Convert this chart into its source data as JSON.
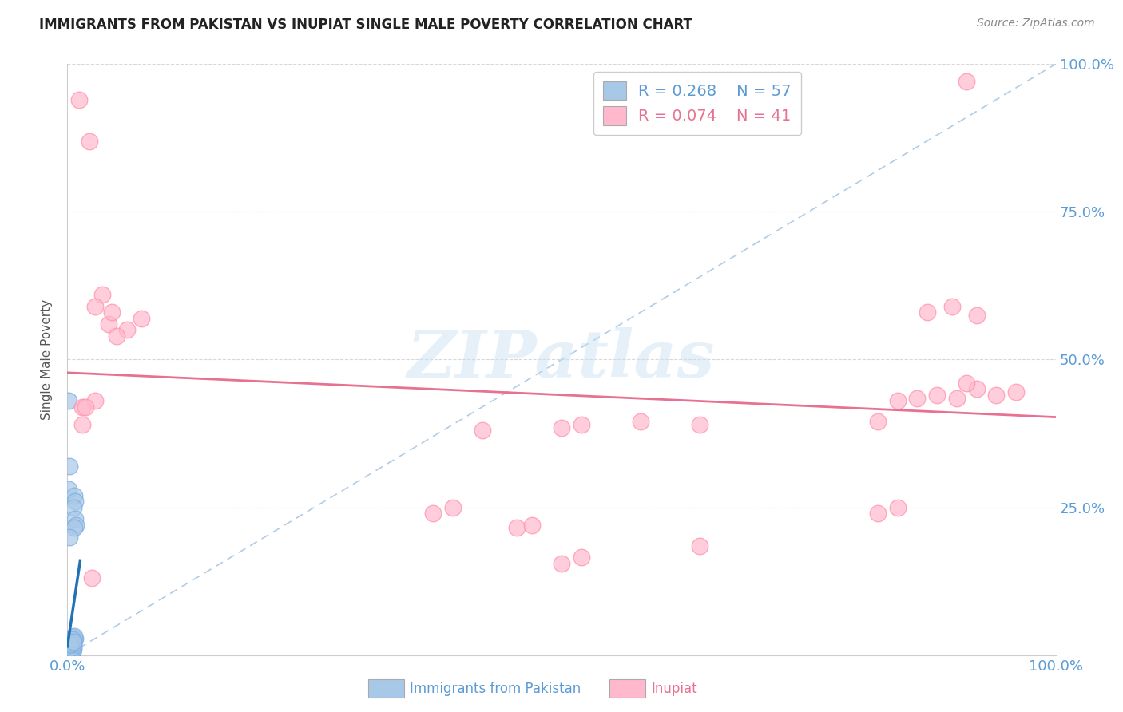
{
  "title": "IMMIGRANTS FROM PAKISTAN VS INUPIAT SINGLE MALE POVERTY CORRELATION CHART",
  "source": "Source: ZipAtlas.com",
  "ylabel": "Single Male Poverty",
  "legend_label1": "Immigrants from Pakistan",
  "legend_label2": "Inupiat",
  "r1": "0.268",
  "n1": "57",
  "r2": "0.074",
  "n2": "41",
  "watermark": "ZIPatlas",
  "blue_color": "#a8c8e8",
  "blue_edge_color": "#7aade0",
  "pink_color": "#ffb8cc",
  "pink_edge_color": "#ff8faa",
  "blue_line_color": "#2171b5",
  "pink_line_color": "#e87090",
  "diag_color": "#b0cce8",
  "grid_color": "#d8d8d8",
  "blue_scatter": [
    [
      0.002,
      0.005
    ],
    [
      0.003,
      0.008
    ],
    [
      0.001,
      0.003
    ],
    [
      0.004,
      0.006
    ],
    [
      0.002,
      0.004
    ],
    [
      0.001,
      0.007
    ],
    [
      0.003,
      0.005
    ],
    [
      0.002,
      0.003
    ],
    [
      0.001,
      0.006
    ],
    [
      0.004,
      0.004
    ],
    [
      0.002,
      0.008
    ],
    [
      0.001,
      0.005
    ],
    [
      0.003,
      0.003
    ],
    [
      0.002,
      0.006
    ],
    [
      0.001,
      0.004
    ],
    [
      0.004,
      0.007
    ],
    [
      0.003,
      0.006
    ],
    [
      0.002,
      0.007
    ],
    [
      0.001,
      0.002
    ],
    [
      0.003,
      0.004
    ],
    [
      0.002,
      0.009
    ],
    [
      0.001,
      0.008
    ],
    [
      0.004,
      0.009
    ],
    [
      0.002,
      0.002
    ],
    [
      0.003,
      0.007
    ],
    [
      0.001,
      0.01
    ],
    [
      0.004,
      0.003
    ],
    [
      0.002,
      0.011
    ],
    [
      0.003,
      0.002
    ],
    [
      0.001,
      0.012
    ],
    [
      0.005,
      0.005
    ],
    [
      0.004,
      0.008
    ],
    [
      0.003,
      0.009
    ],
    [
      0.005,
      0.007
    ],
    [
      0.006,
      0.01
    ],
    [
      0.004,
      0.012
    ],
    [
      0.006,
      0.015
    ],
    [
      0.005,
      0.02
    ],
    [
      0.007,
      0.025
    ],
    [
      0.005,
      0.03
    ],
    [
      0.008,
      0.028
    ],
    [
      0.007,
      0.032
    ],
    [
      0.006,
      0.018
    ],
    [
      0.004,
      0.022
    ],
    [
      0.005,
      0.026
    ],
    [
      0.003,
      0.018
    ],
    [
      0.006,
      0.023
    ],
    [
      0.001,
      0.43
    ],
    [
      0.002,
      0.32
    ],
    [
      0.001,
      0.28
    ],
    [
      0.007,
      0.27
    ],
    [
      0.008,
      0.26
    ],
    [
      0.006,
      0.25
    ],
    [
      0.008,
      0.23
    ],
    [
      0.009,
      0.22
    ],
    [
      0.007,
      0.215
    ],
    [
      0.002,
      0.2
    ]
  ],
  "pink_scatter": [
    [
      0.012,
      0.94
    ],
    [
      0.022,
      0.87
    ],
    [
      0.035,
      0.61
    ],
    [
      0.028,
      0.59
    ],
    [
      0.042,
      0.56
    ],
    [
      0.06,
      0.55
    ],
    [
      0.075,
      0.57
    ],
    [
      0.05,
      0.54
    ],
    [
      0.045,
      0.58
    ],
    [
      0.028,
      0.43
    ],
    [
      0.015,
      0.42
    ],
    [
      0.018,
      0.42
    ],
    [
      0.52,
      0.39
    ],
    [
      0.5,
      0.385
    ],
    [
      0.58,
      0.395
    ],
    [
      0.64,
      0.39
    ],
    [
      0.42,
      0.38
    ],
    [
      0.82,
      0.395
    ],
    [
      0.84,
      0.43
    ],
    [
      0.86,
      0.435
    ],
    [
      0.88,
      0.44
    ],
    [
      0.9,
      0.435
    ],
    [
      0.92,
      0.45
    ],
    [
      0.94,
      0.44
    ],
    [
      0.96,
      0.445
    ],
    [
      0.91,
      0.46
    ],
    [
      0.87,
      0.58
    ],
    [
      0.895,
      0.59
    ],
    [
      0.92,
      0.575
    ],
    [
      0.91,
      0.97
    ],
    [
      0.37,
      0.24
    ],
    [
      0.39,
      0.25
    ],
    [
      0.82,
      0.24
    ],
    [
      0.84,
      0.25
    ],
    [
      0.455,
      0.215
    ],
    [
      0.47,
      0.22
    ],
    [
      0.64,
      0.185
    ],
    [
      0.5,
      0.155
    ],
    [
      0.52,
      0.165
    ],
    [
      0.015,
      0.39
    ],
    [
      0.025,
      0.13
    ]
  ],
  "xlim": [
    0,
    1
  ],
  "ylim": [
    0,
    1
  ],
  "yticks": [
    0,
    0.25,
    0.5,
    0.75,
    1.0
  ],
  "right_ytick_labels": [
    "",
    "25.0%",
    "50.0%",
    "75.0%",
    "100.0%"
  ]
}
